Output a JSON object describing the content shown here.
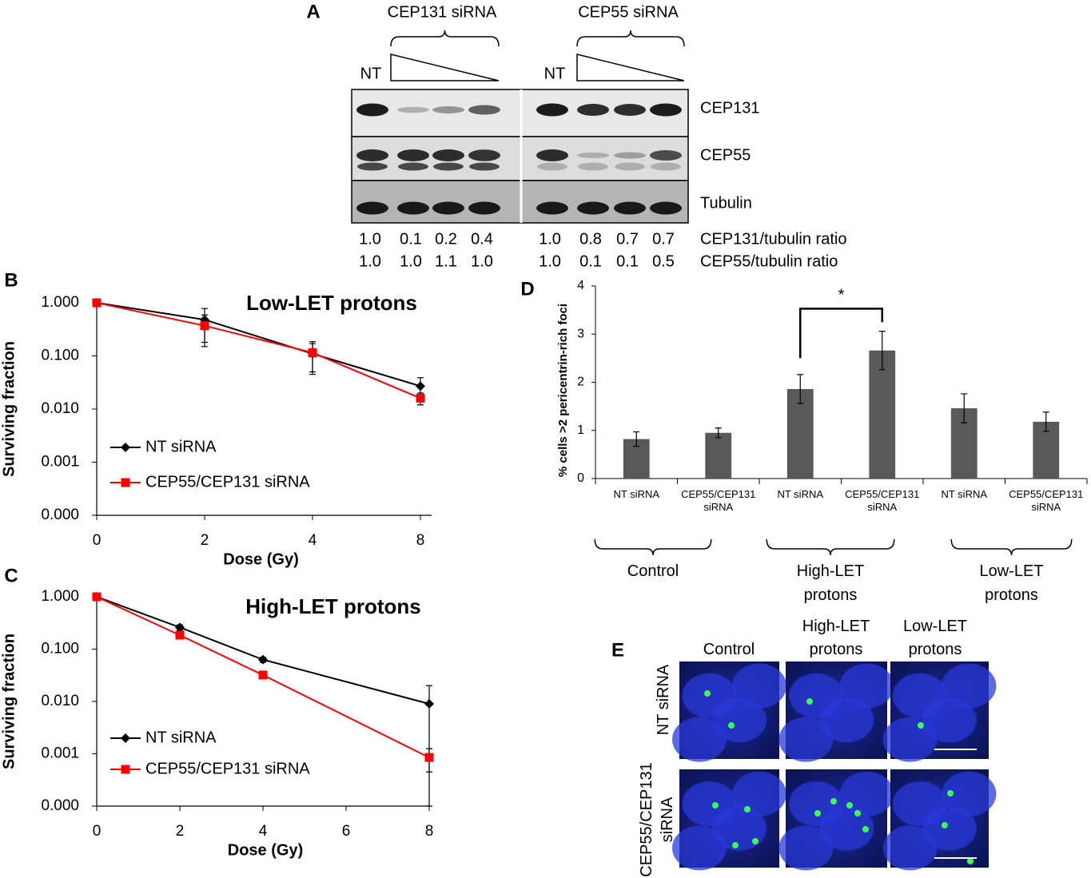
{
  "panel_labels": [
    "A",
    "B",
    "C",
    "D",
    "E"
  ],
  "blot": {
    "groups": [
      "CEP131 siRNA",
      "CEP55 siRNA"
    ],
    "controls": [
      "NT",
      "NT"
    ],
    "rows": [
      "CEP131",
      "CEP55",
      "Tubulin"
    ],
    "ratios": [
      {
        "label": "CEP131/tubulin ratio",
        "values": [
          "1.0",
          "0.1",
          "0.2",
          "0.4",
          "1.0",
          "0.8",
          "0.7",
          "0.7"
        ]
      },
      {
        "label": "CEP55/tubulin ratio",
        "values": [
          "1.0",
          "1.0",
          "1.1",
          "1.0",
          "1.0",
          "0.1",
          "0.1",
          "0.5"
        ]
      }
    ]
  },
  "chart_data": [
    {
      "type": "line",
      "title": "Low-LET protons",
      "xlabel": "Dose (Gy)",
      "ylabel": "Surviving fraction",
      "categories": [
        "0",
        "2",
        "4",
        "8"
      ],
      "log_scale": true,
      "ylim": [
        0.0001,
        1
      ],
      "yticks": [
        {
          "value": 1,
          "label": "1.000"
        },
        {
          "value": 0.1,
          "label": "0.100"
        },
        {
          "value": 0.01,
          "label": "0.010"
        },
        {
          "value": 0.001,
          "label": "0.001"
        },
        {
          "value": 0.0001,
          "label": "0.000"
        }
      ],
      "legend": "lower left",
      "series": [
        {
          "name": "NT siRNA",
          "color": "#000000",
          "marker": "diamond",
          "values": [
            1,
            0.48,
            0.11,
            0.027
          ],
          "errors": [
            0,
            0.3,
            0.06,
            0.012
          ]
        },
        {
          "name": "CEP55/CEP131 siRNA",
          "color": "#ff0000",
          "marker": "square",
          "values": [
            1,
            0.37,
            0.115,
            0.016
          ],
          "errors": [
            0,
            0.22,
            0.07,
            0.004
          ]
        }
      ]
    },
    {
      "type": "line",
      "title": "High-LET protons",
      "xlabel": "Dose (Gy)",
      "ylabel": "Surviving fraction",
      "x": [
        0,
        2,
        4,
        8
      ],
      "xlim": [
        0,
        8
      ],
      "xticks": [
        0,
        2,
        4,
        6,
        8
      ],
      "log_scale": true,
      "ylim": [
        0.0001,
        1
      ],
      "yticks": [
        {
          "value": 1,
          "label": "1.000"
        },
        {
          "value": 0.1,
          "label": "0.100"
        },
        {
          "value": 0.01,
          "label": "0.010"
        },
        {
          "value": 0.001,
          "label": "0.001"
        },
        {
          "value": 0.0001,
          "label": "0.000"
        }
      ],
      "legend": "lower left",
      "series": [
        {
          "name": "NT siRNA",
          "color": "#000000",
          "marker": "diamond",
          "values": [
            1,
            0.26,
            0.063,
            0.009
          ],
          "errors": [
            0,
            0.03,
            0.007,
            0.011
          ]
        },
        {
          "name": "CEP55/CEP131 siRNA",
          "color": "#ff0000",
          "marker": "square",
          "values": [
            1,
            0.185,
            0.032,
            0.00085
          ],
          "errors": [
            0,
            0.02,
            0.003,
            0.0004
          ]
        }
      ]
    },
    {
      "type": "bar",
      "ylabel": "% cells >2 pericentrin-rich foci",
      "categories": [
        "NT siRNA",
        "CEP55/CEP131 siRNA",
        "NT siRNA",
        "CEP55/CEP131 siRNA",
        "NT siRNA",
        "CEP55/CEP131 siRNA"
      ],
      "values": [
        0.82,
        0.95,
        1.86,
        2.66,
        1.46,
        1.18
      ],
      "errors": [
        0.15,
        0.1,
        0.3,
        0.4,
        0.3,
        0.2
      ],
      "color": "#595959",
      "ylim": [
        0,
        4
      ],
      "yticks": [
        0,
        1,
        2,
        3,
        4
      ],
      "groups": [
        "Control",
        "High-LET protons",
        "Low-LET protons"
      ],
      "significance": "*"
    }
  ],
  "micrographs": {
    "columns": [
      "Control",
      "High-LET protons",
      "Low-LET protons"
    ],
    "rows": [
      "NT siRNA",
      "CEP55/CEP131 siRNA"
    ]
  }
}
